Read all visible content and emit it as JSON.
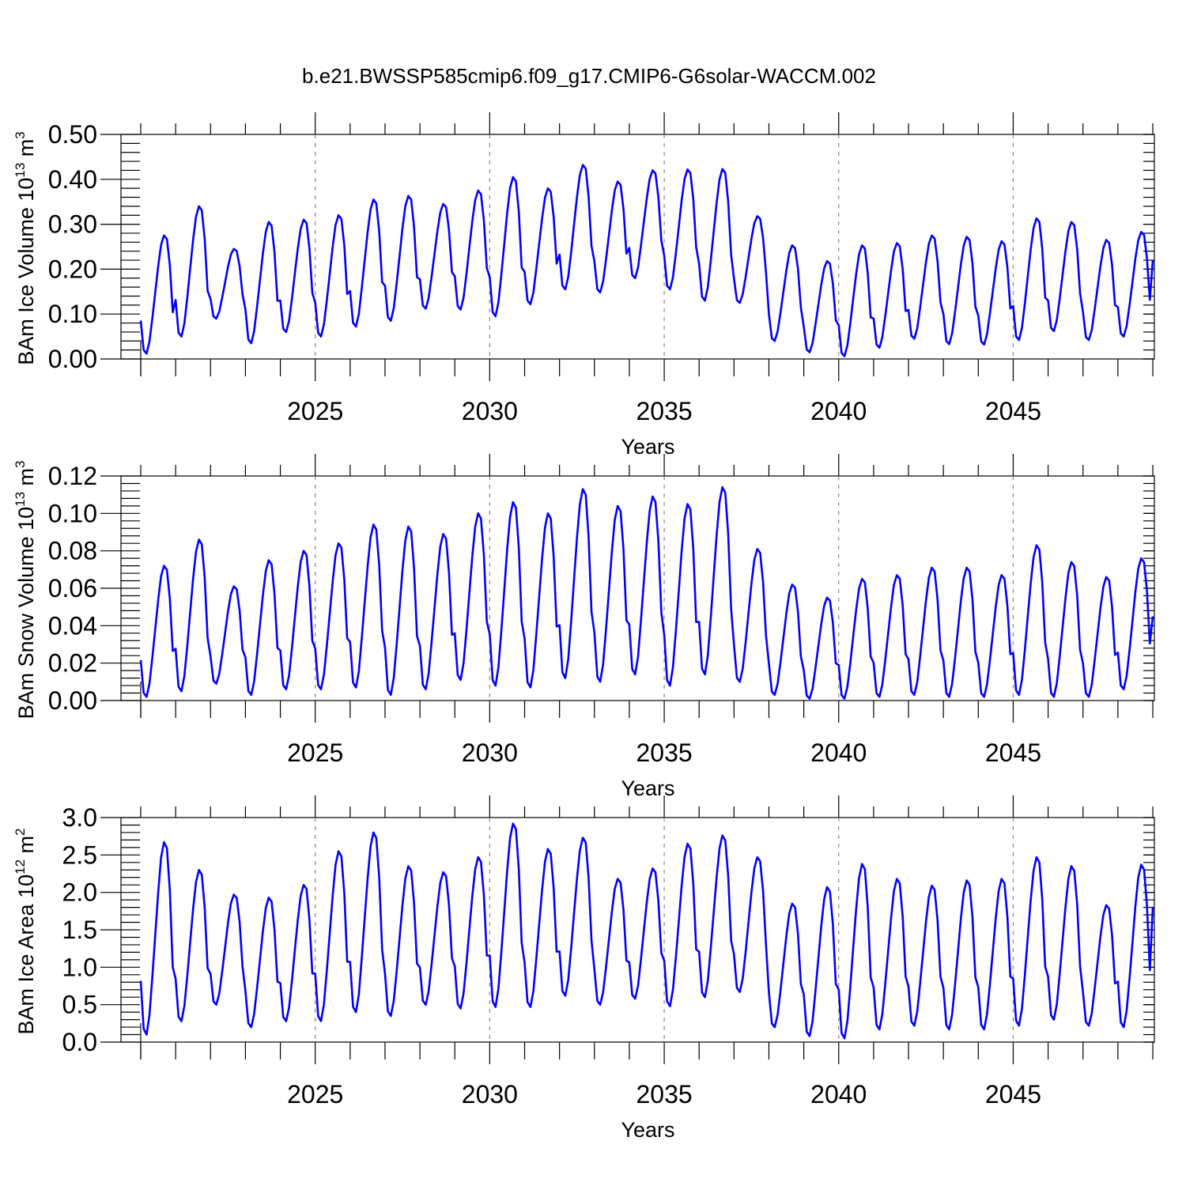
{
  "title": "b.e21.BWSSP585cmip6.f09_g17.CMIP6-G6solar-WACCM.002",
  "chart_data": [
    {
      "type": "line",
      "ylabel_main": "BAm Ice Volume 10",
      "ylabel_exp": "13",
      "ylabel_unit": " m",
      "ylabel_unit_exp": "3",
      "xlabel": "Years",
      "xlim": [
        2020.0,
        2049.0
      ],
      "ylim": [
        0,
        0.5
      ],
      "yticks": [
        0.0,
        0.1,
        0.2,
        0.3,
        0.4,
        0.5
      ],
      "yticklabels": [
        "0.00",
        "0.10",
        "0.20",
        "0.30",
        "0.40",
        "0.50"
      ],
      "xticks": [
        2025,
        2030,
        2035,
        2040,
        2045
      ],
      "xticklabels": [
        "2025",
        "2030",
        "2035",
        "2040",
        "2045"
      ],
      "grid_x": true,
      "series": [
        {
          "color": "#0000ff",
          "x_start": 2020.0,
          "x_step": 0.0833333,
          "annual_min": [
            0.012,
            0.05,
            0.09,
            0.035,
            0.06,
            0.05,
            0.072,
            0.085,
            0.112,
            0.11,
            0.095,
            0.122,
            0.155,
            0.148,
            0.18,
            0.155,
            0.13,
            0.125,
            0.04,
            0.015,
            0.006,
            0.025,
            0.045,
            0.033,
            0.032,
            0.042,
            0.062,
            0.042,
            0.05
          ],
          "annual_max": [
            0.275,
            0.34,
            0.245,
            0.305,
            0.31,
            0.32,
            0.355,
            0.363,
            0.345,
            0.375,
            0.405,
            0.38,
            0.432,
            0.395,
            0.42,
            0.422,
            0.423,
            0.318,
            0.253,
            0.218,
            0.253,
            0.258,
            0.275,
            0.272,
            0.262,
            0.313,
            0.305,
            0.265,
            0.283
          ],
          "y_end": 0.22
        }
      ]
    },
    {
      "type": "line",
      "ylabel_main": "BAm Snow Volume 10",
      "ylabel_exp": "13",
      "ylabel_unit": " m",
      "ylabel_unit_exp": "3",
      "xlabel": "Years",
      "xlim": [
        2020.0,
        2049.0
      ],
      "ylim": [
        0,
        0.12
      ],
      "yticks": [
        0.0,
        0.02,
        0.04,
        0.06,
        0.08,
        0.1,
        0.12
      ],
      "yticklabels": [
        "0.00",
        "0.02",
        "0.04",
        "0.06",
        "0.08",
        "0.10",
        "0.12"
      ],
      "xticks": [
        2025,
        2030,
        2035,
        2040,
        2045
      ],
      "xticklabels": [
        "2025",
        "2030",
        "2035",
        "2040",
        "2045"
      ],
      "grid_x": true,
      "series": [
        {
          "color": "#0000ff",
          "x_start": 2020.0,
          "x_step": 0.0833333,
          "annual_min": [
            0.002,
            0.005,
            0.009,
            0.003,
            0.006,
            0.006,
            0.007,
            0.003,
            0.006,
            0.011,
            0.008,
            0.007,
            0.012,
            0.01,
            0.014,
            0.008,
            0.014,
            0.01,
            0.003,
            0.001,
            0.001,
            0.002,
            0.003,
            0.002,
            0.002,
            0.003,
            0.002,
            0.002,
            0.006
          ],
          "annual_max": [
            0.072,
            0.086,
            0.061,
            0.075,
            0.08,
            0.084,
            0.094,
            0.093,
            0.089,
            0.1,
            0.106,
            0.1,
            0.113,
            0.104,
            0.109,
            0.105,
            0.114,
            0.081,
            0.062,
            0.055,
            0.065,
            0.067,
            0.071,
            0.071,
            0.067,
            0.083,
            0.074,
            0.066,
            0.076
          ],
          "y_end": 0.045
        }
      ]
    },
    {
      "type": "line",
      "ylabel_main": "BAm Ice Area 10",
      "ylabel_exp": "12",
      "ylabel_unit": " m",
      "ylabel_unit_exp": "2",
      "xlabel": "Years",
      "xlim": [
        2020.0,
        2049.0
      ],
      "ylim": [
        0,
        3.0
      ],
      "yticks": [
        0.0,
        0.5,
        1.0,
        1.5,
        2.0,
        2.5,
        3.0
      ],
      "yticklabels": [
        "0.0",
        "0.5",
        "1.0",
        "1.5",
        "2.0",
        "2.5",
        "3.0"
      ],
      "xticks": [
        2025,
        2030,
        2035,
        2040,
        2045
      ],
      "xticklabels": [
        "2025",
        "2030",
        "2035",
        "2040",
        "2045"
      ],
      "grid_x": true,
      "series": [
        {
          "color": "#0000ff",
          "x_start": 2020.0,
          "x_step": 0.0833333,
          "annual_min": [
            0.1,
            0.28,
            0.5,
            0.2,
            0.28,
            0.28,
            0.4,
            0.35,
            0.5,
            0.45,
            0.47,
            0.47,
            0.62,
            0.5,
            0.58,
            0.48,
            0.6,
            0.67,
            0.2,
            0.08,
            0.05,
            0.17,
            0.22,
            0.17,
            0.17,
            0.22,
            0.3,
            0.22,
            0.2
          ],
          "annual_max": [
            2.67,
            2.3,
            1.97,
            1.93,
            2.1,
            2.55,
            2.8,
            2.35,
            2.27,
            2.47,
            2.92,
            2.58,
            2.73,
            2.18,
            2.32,
            2.65,
            2.76,
            2.47,
            1.85,
            2.07,
            2.38,
            2.18,
            2.09,
            2.16,
            2.18,
            2.47,
            2.35,
            1.83,
            2.37
          ],
          "y_end": 1.8
        }
      ]
    }
  ]
}
